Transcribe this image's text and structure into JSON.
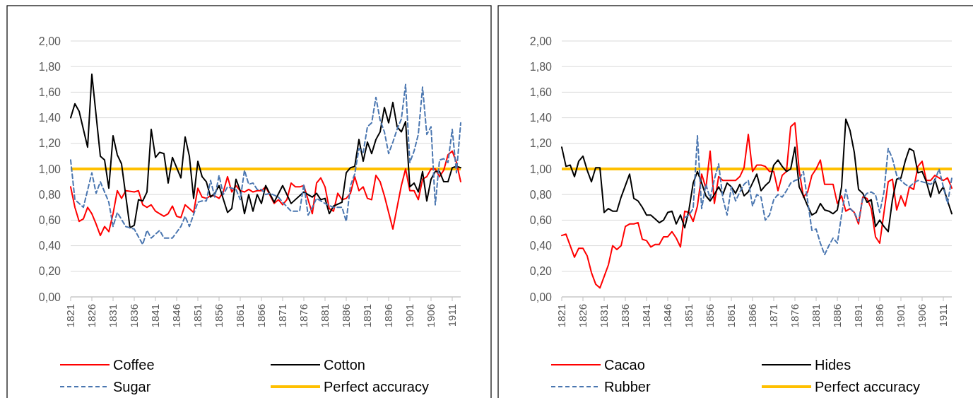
{
  "chart_data": [
    {
      "type": "line",
      "xlim": [
        1821,
        1913
      ],
      "xticks": [
        1821,
        1826,
        1831,
        1836,
        1841,
        1846,
        1851,
        1856,
        1861,
        1866,
        1871,
        1876,
        1881,
        1886,
        1891,
        1896,
        1901,
        1906,
        1911
      ],
      "ylim": [
        0,
        2
      ],
      "yticks": [
        {
          "value": 0,
          "label": "0,00"
        },
        {
          "value": 0.2,
          "label": "0,20"
        },
        {
          "value": 0.4,
          "label": "0,40"
        },
        {
          "value": 0.6,
          "label": "0,60"
        },
        {
          "value": 0.8,
          "label": "0,80"
        },
        {
          "value": 1,
          "label": "1,00"
        },
        {
          "value": 1.2,
          "label": "1,20"
        },
        {
          "value": 1.4,
          "label": "1,40"
        },
        {
          "value": 1.6,
          "label": "1,60"
        },
        {
          "value": 1.8,
          "label": "1,80"
        },
        {
          "value": 2,
          "label": "2,00"
        }
      ],
      "grid": "y",
      "legend": "bottom",
      "series": [
        {
          "name": "Coffee",
          "color": "#ff0000",
          "line_style": "solid",
          "x": [
            1821,
            1822,
            1823,
            1824,
            1825,
            1826,
            1827,
            1828,
            1829,
            1830,
            1831,
            1832,
            1833,
            1834,
            1836,
            1837,
            1838,
            1839,
            1840,
            1841,
            1842,
            1843,
            1844,
            1845,
            1846,
            1847,
            1848,
            1849,
            1850,
            1851,
            1852,
            1853,
            1854,
            1855,
            1856,
            1857,
            1858,
            1859,
            1860,
            1861,
            1862,
            1863,
            1864,
            1865,
            1866,
            1867,
            1869,
            1870,
            1871,
            1872,
            1873,
            1874,
            1875,
            1876,
            1877,
            1878,
            1879,
            1880,
            1881,
            1882,
            1883,
            1884,
            1885,
            1886,
            1887,
            1888,
            1889,
            1890,
            1891,
            1892,
            1893,
            1894,
            1895,
            1896,
            1897,
            1898,
            1899,
            1900,
            1901,
            1902,
            1903,
            1904,
            1905,
            1906,
            1907,
            1908,
            1909,
            1910,
            1911,
            1912,
            1913
          ],
          "values": [
            0.86,
            0.7,
            0.59,
            0.61,
            0.7,
            0.65,
            0.57,
            0.48,
            0.55,
            0.51,
            0.65,
            0.83,
            0.77,
            0.83,
            0.82,
            0.83,
            0.72,
            0.7,
            0.72,
            0.67,
            0.65,
            0.63,
            0.65,
            0.71,
            0.63,
            0.62,
            0.72,
            0.69,
            0.66,
            0.85,
            0.78,
            0.77,
            0.79,
            0.79,
            0.77,
            0.82,
            0.94,
            0.82,
            0.87,
            0.83,
            0.82,
            0.84,
            0.82,
            0.83,
            0.83,
            0.86,
            0.73,
            0.76,
            0.72,
            0.76,
            0.89,
            0.86,
            0.86,
            0.87,
            0.76,
            0.65,
            0.89,
            0.93,
            0.86,
            0.69,
            0.67,
            0.81,
            0.76,
            0.77,
            0.81,
            0.94,
            0.83,
            0.86,
            0.77,
            0.76,
            0.95,
            0.9,
            0.79,
            0.66,
            0.53,
            0.7,
            0.87,
            1.0,
            0.83,
            0.83,
            0.76,
            0.92,
            0.94,
            1.0,
            1.0,
            0.94,
            0.99,
            1.11,
            1.14,
            1.05,
            0.9
          ]
        },
        {
          "name": "Cotton",
          "color": "#000000",
          "line_style": "solid",
          "x": [
            1821,
            1822,
            1823,
            1825,
            1826,
            1828,
            1829,
            1830,
            1831,
            1832,
            1833,
            1835,
            1836,
            1837,
            1838,
            1839,
            1840,
            1841,
            1842,
            1843,
            1844,
            1845,
            1847,
            1848,
            1849,
            1850,
            1851,
            1852,
            1853,
            1854,
            1855,
            1856,
            1858,
            1859,
            1860,
            1861,
            1862,
            1863,
            1864,
            1865,
            1866,
            1867,
            1869,
            1871,
            1873,
            1876,
            1878,
            1879,
            1880,
            1881,
            1882,
            1883,
            1885,
            1886,
            1887,
            1888,
            1889,
            1890,
            1891,
            1892,
            1893,
            1894,
            1895,
            1896,
            1897,
            1898,
            1899,
            1900,
            1901,
            1902,
            1903,
            1904,
            1905,
            1906,
            1907,
            1908,
            1909,
            1910,
            1911,
            1912,
            1913
          ],
          "values": [
            1.4,
            1.51,
            1.45,
            1.17,
            1.74,
            1.1,
            1.07,
            0.85,
            1.26,
            1.11,
            1.04,
            0.54,
            0.56,
            0.76,
            0.75,
            0.82,
            1.31,
            1.09,
            1.13,
            1.12,
            0.89,
            1.09,
            0.93,
            1.25,
            1.1,
            0.77,
            1.06,
            0.94,
            0.9,
            0.78,
            0.81,
            0.87,
            0.66,
            0.69,
            0.92,
            0.83,
            0.65,
            0.8,
            0.67,
            0.8,
            0.73,
            0.87,
            0.74,
            0.87,
            0.73,
            0.82,
            0.78,
            0.81,
            0.76,
            0.77,
            0.65,
            0.71,
            0.74,
            0.97,
            1.01,
            1.02,
            1.23,
            1.06,
            1.21,
            1.12,
            1.23,
            1.29,
            1.48,
            1.36,
            1.52,
            1.33,
            1.29,
            1.37,
            0.86,
            0.89,
            0.82,
            0.98,
            0.75,
            0.92,
            0.98,
            0.98,
            0.9,
            0.9,
            1.01,
            1.02,
            1.01
          ]
        },
        {
          "name": "Sugar",
          "color": "#4a76b0",
          "line_style": "dashed",
          "x": [
            1821,
            1822,
            1824,
            1826,
            1827,
            1828,
            1830,
            1831,
            1832,
            1834,
            1836,
            1838,
            1839,
            1840,
            1842,
            1843,
            1845,
            1847,
            1848,
            1849,
            1851,
            1852,
            1853,
            1854,
            1855,
            1856,
            1857,
            1858,
            1860,
            1861,
            1862,
            1863,
            1864,
            1865,
            1866,
            1867,
            1868,
            1870,
            1871,
            1873,
            1875,
            1876,
            1877,
            1878,
            1879,
            1881,
            1883,
            1885,
            1886,
            1887,
            1888,
            1889,
            1890,
            1891,
            1892,
            1893,
            1894,
            1895,
            1896,
            1897,
            1898,
            1899,
            1900,
            1901,
            1902,
            1903,
            1904,
            1905,
            1906,
            1907,
            1908,
            1909,
            1910,
            1911,
            1912,
            1913
          ],
          "values": [
            1.07,
            0.76,
            0.7,
            0.97,
            0.81,
            0.9,
            0.74,
            0.55,
            0.66,
            0.55,
            0.53,
            0.41,
            0.52,
            0.46,
            0.52,
            0.46,
            0.46,
            0.55,
            0.63,
            0.55,
            0.74,
            0.75,
            0.75,
            0.91,
            0.78,
            0.95,
            0.8,
            0.86,
            0.84,
            0.76,
            0.99,
            0.88,
            0.89,
            0.84,
            0.84,
            0.8,
            0.81,
            0.78,
            0.74,
            0.67,
            0.67,
            0.88,
            0.64,
            0.7,
            0.77,
            0.73,
            0.7,
            0.7,
            0.59,
            0.87,
            0.96,
            1.16,
            1.13,
            1.33,
            1.36,
            1.56,
            1.38,
            1.29,
            1.12,
            1.21,
            1.31,
            1.39,
            1.66,
            1.05,
            1.14,
            1.27,
            1.64,
            1.27,
            1.33,
            0.72,
            1.07,
            1.08,
            1.05,
            1.31,
            0.97,
            1.36
          ]
        }
      ],
      "ref_lines": [
        {
          "axis": "y",
          "value": 1,
          "label": "Perfect accuracy",
          "color": "#ffc000"
        }
      ]
    },
    {
      "type": "line",
      "xlim": [
        1821,
        1913
      ],
      "xticks": [
        1821,
        1826,
        1831,
        1836,
        1841,
        1846,
        1851,
        1856,
        1861,
        1866,
        1871,
        1876,
        1881,
        1886,
        1891,
        1896,
        1901,
        1906,
        1911
      ],
      "ylim": [
        0,
        2
      ],
      "yticks": [
        {
          "value": 0,
          "label": "0,00"
        },
        {
          "value": 0.2,
          "label": "0,20"
        },
        {
          "value": 0.4,
          "label": "0,40"
        },
        {
          "value": 0.6,
          "label": "0,60"
        },
        {
          "value": 0.8,
          "label": "0,80"
        },
        {
          "value": 1,
          "label": "1,00"
        },
        {
          "value": 1.2,
          "label": "1,20"
        },
        {
          "value": 1.4,
          "label": "1,40"
        },
        {
          "value": 1.6,
          "label": "1,60"
        },
        {
          "value": 1.8,
          "label": "1,80"
        },
        {
          "value": 2,
          "label": "2,00"
        }
      ],
      "grid": "y",
      "legend": "bottom",
      "series": [
        {
          "name": "Cacao",
          "color": "#ff0000",
          "line_style": "solid",
          "x": [
            1821,
            1822,
            1823,
            1824,
            1825,
            1826,
            1827,
            1828,
            1829,
            1830,
            1831,
            1832,
            1833,
            1834,
            1835,
            1836,
            1837,
            1838,
            1839,
            1840,
            1841,
            1842,
            1843,
            1844,
            1845,
            1846,
            1847,
            1848,
            1849,
            1850,
            1851,
            1852,
            1853,
            1854,
            1855,
            1856,
            1857,
            1858,
            1859,
            1860,
            1861,
            1862,
            1863,
            1864,
            1865,
            1866,
            1867,
            1868,
            1869,
            1870,
            1871,
            1872,
            1873,
            1874,
            1875,
            1876,
            1877,
            1878,
            1879,
            1880,
            1881,
            1882,
            1883,
            1884,
            1885,
            1886,
            1887,
            1888,
            1889,
            1890,
            1891,
            1892,
            1893,
            1894,
            1895,
            1896,
            1897,
            1898,
            1899,
            1900,
            1901,
            1902,
            1903,
            1904,
            1905,
            1906,
            1907,
            1908,
            1909,
            1910,
            1911,
            1912,
            1913
          ],
          "values": [
            0.48,
            0.49,
            0.4,
            0.31,
            0.38,
            0.38,
            0.32,
            0.19,
            0.1,
            0.07,
            0.16,
            0.25,
            0.4,
            0.37,
            0.4,
            0.55,
            0.57,
            0.57,
            0.58,
            0.45,
            0.44,
            0.39,
            0.41,
            0.41,
            0.47,
            0.47,
            0.51,
            0.46,
            0.39,
            0.67,
            0.66,
            0.59,
            0.71,
            0.96,
            0.85,
            1.14,
            0.73,
            0.94,
            0.91,
            0.91,
            0.91,
            0.91,
            0.94,
            1.01,
            1.27,
            0.98,
            1.03,
            1.03,
            1.02,
            0.98,
            0.98,
            0.83,
            0.95,
            0.98,
            1.33,
            1.36,
            0.99,
            0.78,
            0.82,
            0.95,
            1.0,
            1.07,
            0.88,
            0.88,
            0.88,
            0.73,
            0.79,
            0.67,
            0.69,
            0.66,
            0.57,
            0.78,
            0.77,
            0.69,
            0.47,
            0.42,
            0.66,
            0.9,
            0.92,
            0.68,
            0.79,
            0.71,
            0.86,
            0.84,
            1.02,
            1.06,
            0.91,
            0.91,
            0.95,
            0.93,
            0.91,
            0.93,
            0.85
          ]
        },
        {
          "name": "Hides",
          "color": "#000000",
          "line_style": "solid",
          "x": [
            1821,
            1822,
            1823,
            1824,
            1825,
            1826,
            1827,
            1828,
            1829,
            1830,
            1831,
            1832,
            1833,
            1834,
            1835,
            1836,
            1837,
            1838,
            1839,
            1840,
            1841,
            1842,
            1843,
            1844,
            1845,
            1846,
            1847,
            1848,
            1849,
            1850,
            1851,
            1852,
            1853,
            1854,
            1855,
            1856,
            1857,
            1858,
            1859,
            1860,
            1861,
            1862,
            1863,
            1864,
            1865,
            1866,
            1867,
            1868,
            1869,
            1870,
            1871,
            1872,
            1873,
            1874,
            1875,
            1876,
            1877,
            1878,
            1879,
            1880,
            1881,
            1882,
            1883,
            1884,
            1885,
            1886,
            1887,
            1888,
            1889,
            1890,
            1891,
            1892,
            1893,
            1894,
            1895,
            1896,
            1897,
            1898,
            1899,
            1900,
            1901,
            1902,
            1903,
            1904,
            1905,
            1906,
            1907,
            1908,
            1909,
            1910,
            1911,
            1912,
            1913
          ],
          "values": [
            1.17,
            1.02,
            1.03,
            0.94,
            1.06,
            1.1,
            0.99,
            0.9,
            1.01,
            1.01,
            0.66,
            0.69,
            0.67,
            0.67,
            0.78,
            0.87,
            0.96,
            0.77,
            0.75,
            0.7,
            0.64,
            0.64,
            0.61,
            0.58,
            0.6,
            0.66,
            0.67,
            0.57,
            0.64,
            0.54,
            0.68,
            0.89,
            0.98,
            0.89,
            0.79,
            0.75,
            0.8,
            0.86,
            0.8,
            0.89,
            0.86,
            0.81,
            0.88,
            0.79,
            0.82,
            0.89,
            0.96,
            0.83,
            0.87,
            0.9,
            1.03,
            1.07,
            1.02,
            0.98,
            1.0,
            1.17,
            0.86,
            0.79,
            0.71,
            0.64,
            0.66,
            0.73,
            0.68,
            0.67,
            0.65,
            0.68,
            0.86,
            1.39,
            1.3,
            1.13,
            0.84,
            0.81,
            0.74,
            0.76,
            0.55,
            0.6,
            0.55,
            0.51,
            0.76,
            0.92,
            0.93,
            1.06,
            1.16,
            1.14,
            0.97,
            0.98,
            0.9,
            0.78,
            0.92,
            0.81,
            0.86,
            0.75,
            0.65
          ]
        },
        {
          "name": "Rubber",
          "color": "#4a76b0",
          "line_style": "dashed",
          "x": [
            1850,
            1851,
            1852,
            1853,
            1854,
            1855,
            1856,
            1857,
            1858,
            1859,
            1860,
            1861,
            1862,
            1863,
            1864,
            1865,
            1866,
            1867,
            1868,
            1869,
            1870,
            1871,
            1872,
            1873,
            1874,
            1875,
            1876,
            1877,
            1878,
            1879,
            1880,
            1881,
            1882,
            1883,
            1884,
            1885,
            1886,
            1887,
            1888,
            1889,
            1890,
            1891,
            1892,
            1893,
            1894,
            1895,
            1896,
            1897,
            1898,
            1899,
            1900,
            1901,
            1902,
            1903,
            1904,
            1905,
            1906,
            1907,
            1908,
            1909,
            1910,
            1911,
            1912,
            1913
          ],
          "values": [
            0.62,
            0.64,
            0.69,
            1.26,
            0.69,
            0.88,
            0.77,
            0.92,
            1.04,
            0.77,
            0.64,
            0.86,
            0.75,
            0.82,
            0.88,
            0.91,
            0.71,
            0.8,
            0.78,
            0.6,
            0.64,
            0.76,
            0.8,
            0.78,
            0.83,
            0.89,
            0.91,
            0.92,
            0.98,
            0.75,
            0.52,
            0.53,
            0.42,
            0.33,
            0.4,
            0.46,
            0.42,
            0.64,
            0.84,
            0.69,
            0.66,
            0.59,
            0.77,
            0.81,
            0.82,
            0.8,
            0.66,
            0.82,
            1.16,
            1.08,
            0.95,
            0.91,
            0.88,
            0.86,
            0.89,
            0.91,
            0.9,
            0.89,
            0.88,
            0.91,
            1.0,
            0.86,
            0.73,
            0.93
          ]
        }
      ],
      "ref_lines": [
        {
          "axis": "y",
          "value": 1,
          "label": "Perfect accuracy",
          "color": "#ffc000"
        }
      ]
    }
  ]
}
